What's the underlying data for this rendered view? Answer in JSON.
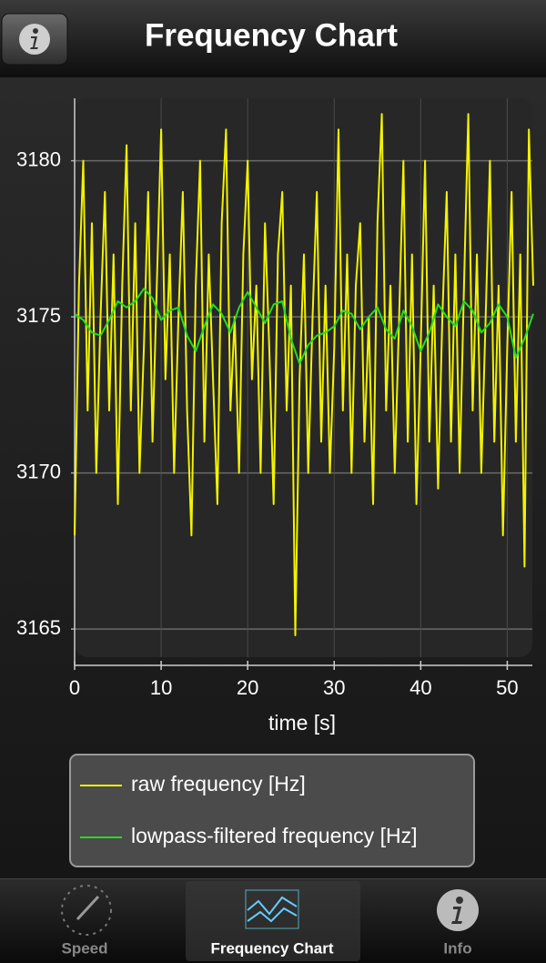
{
  "header": {
    "title": "Frequency Chart"
  },
  "chart_data": {
    "type": "line",
    "x_label": "time [s]",
    "xlim": [
      0,
      52.9
    ],
    "xticks": [
      0,
      10,
      20,
      30,
      40,
      50
    ],
    "ylim": [
      3164.1,
      3182.0
    ],
    "yticks": [
      3165,
      3170,
      3175,
      3180
    ],
    "grid": true,
    "series": [
      {
        "name": "raw frequency [Hz]",
        "color": "#f2f200",
        "x": [
          0,
          0.5,
          1,
          1.5,
          2,
          2.5,
          3,
          3.5,
          4,
          4.5,
          5,
          5.5,
          6,
          6.5,
          7,
          7.5,
          8,
          8.5,
          9,
          9.5,
          10,
          10.5,
          11,
          11.5,
          12,
          12.5,
          13,
          13.5,
          14,
          14.5,
          15,
          15.5,
          16,
          16.5,
          17,
          17.5,
          18,
          18.5,
          19,
          19.5,
          20,
          20.5,
          21,
          21.5,
          22,
          22.5,
          23,
          23.5,
          24,
          24.5,
          25,
          25.5,
          26,
          26.5,
          27,
          27.5,
          28,
          28.5,
          29,
          29.5,
          30,
          30.5,
          31,
          31.5,
          32,
          32.5,
          33,
          33.5,
          34,
          34.5,
          35,
          35.5,
          36,
          36.5,
          37,
          37.5,
          38,
          38.5,
          39,
          39.5,
          40,
          40.5,
          41,
          41.5,
          42,
          42.5,
          43,
          43.5,
          44,
          44.5,
          45,
          45.5,
          46,
          46.5,
          47,
          47.5,
          48,
          48.5,
          49,
          49.5,
          50,
          50.5,
          51,
          51.5,
          52,
          52.5,
          53
        ],
        "values": [
          3168,
          3176,
          3180,
          3172,
          3178,
          3170,
          3175,
          3179,
          3172,
          3177,
          3169,
          3176,
          3180.5,
          3172,
          3178,
          3170,
          3174,
          3179,
          3171,
          3176,
          3181,
          3173,
          3177,
          3170,
          3175,
          3179,
          3172,
          3168,
          3176,
          3180,
          3171,
          3177,
          3173,
          3169,
          3178,
          3181,
          3172,
          3175,
          3170,
          3177,
          3180,
          3173,
          3176,
          3170,
          3178,
          3174,
          3169,
          3177,
          3179,
          3172,
          3176,
          3164.8,
          3173,
          3177,
          3170,
          3175,
          3179,
          3171,
          3176,
          3170,
          3174,
          3181,
          3172,
          3177,
          3170,
          3176,
          3178,
          3171,
          3175,
          3169,
          3178,
          3181.5,
          3172,
          3176,
          3170,
          3175,
          3180,
          3171,
          3177,
          3169,
          3174,
          3180,
          3171,
          3176,
          3169.5,
          3175,
          3179,
          3171,
          3177,
          3170,
          3176,
          3181.5,
          3172,
          3177,
          3170,
          3175,
          3180,
          3171,
          3176,
          3168,
          3174,
          3179,
          3171,
          3177,
          3167,
          3181,
          3176
        ]
      },
      {
        "name": "lowpass-filtered frequency [Hz]",
        "color": "#22dd22",
        "x": [
          0,
          1,
          2,
          3,
          4,
          5,
          6,
          7,
          8,
          9,
          10,
          11,
          12,
          13,
          14,
          15,
          16,
          17,
          18,
          19,
          20,
          21,
          22,
          23,
          24,
          25,
          26,
          27,
          28,
          29,
          30,
          31,
          32,
          33,
          34,
          35,
          36,
          37,
          38,
          39,
          40,
          41,
          42,
          43,
          44,
          45,
          46,
          47,
          48,
          49,
          50,
          51,
          52,
          53
        ],
        "values": [
          3175.1,
          3174.9,
          3174.5,
          3174.4,
          3174.9,
          3175.5,
          3175.3,
          3175.5,
          3175.9,
          3175.6,
          3174.9,
          3175.2,
          3175.3,
          3174.4,
          3173.9,
          3174.7,
          3175.4,
          3175.1,
          3174.5,
          3175.3,
          3175.8,
          3175.3,
          3174.8,
          3175.4,
          3175.5,
          3174.3,
          3173.5,
          3174.1,
          3174.4,
          3174.5,
          3174.7,
          3175.2,
          3175.1,
          3174.6,
          3175.0,
          3175.3,
          3174.6,
          3174.3,
          3175.2,
          3174.7,
          3173.9,
          3174.5,
          3175.4,
          3175.0,
          3174.7,
          3175.5,
          3175.2,
          3174.5,
          3174.8,
          3175.4,
          3175.0,
          3173.7,
          3174.3,
          3175.1
        ]
      }
    ]
  },
  "tabs": [
    "Speed",
    "Frequency Chart",
    "Info"
  ]
}
